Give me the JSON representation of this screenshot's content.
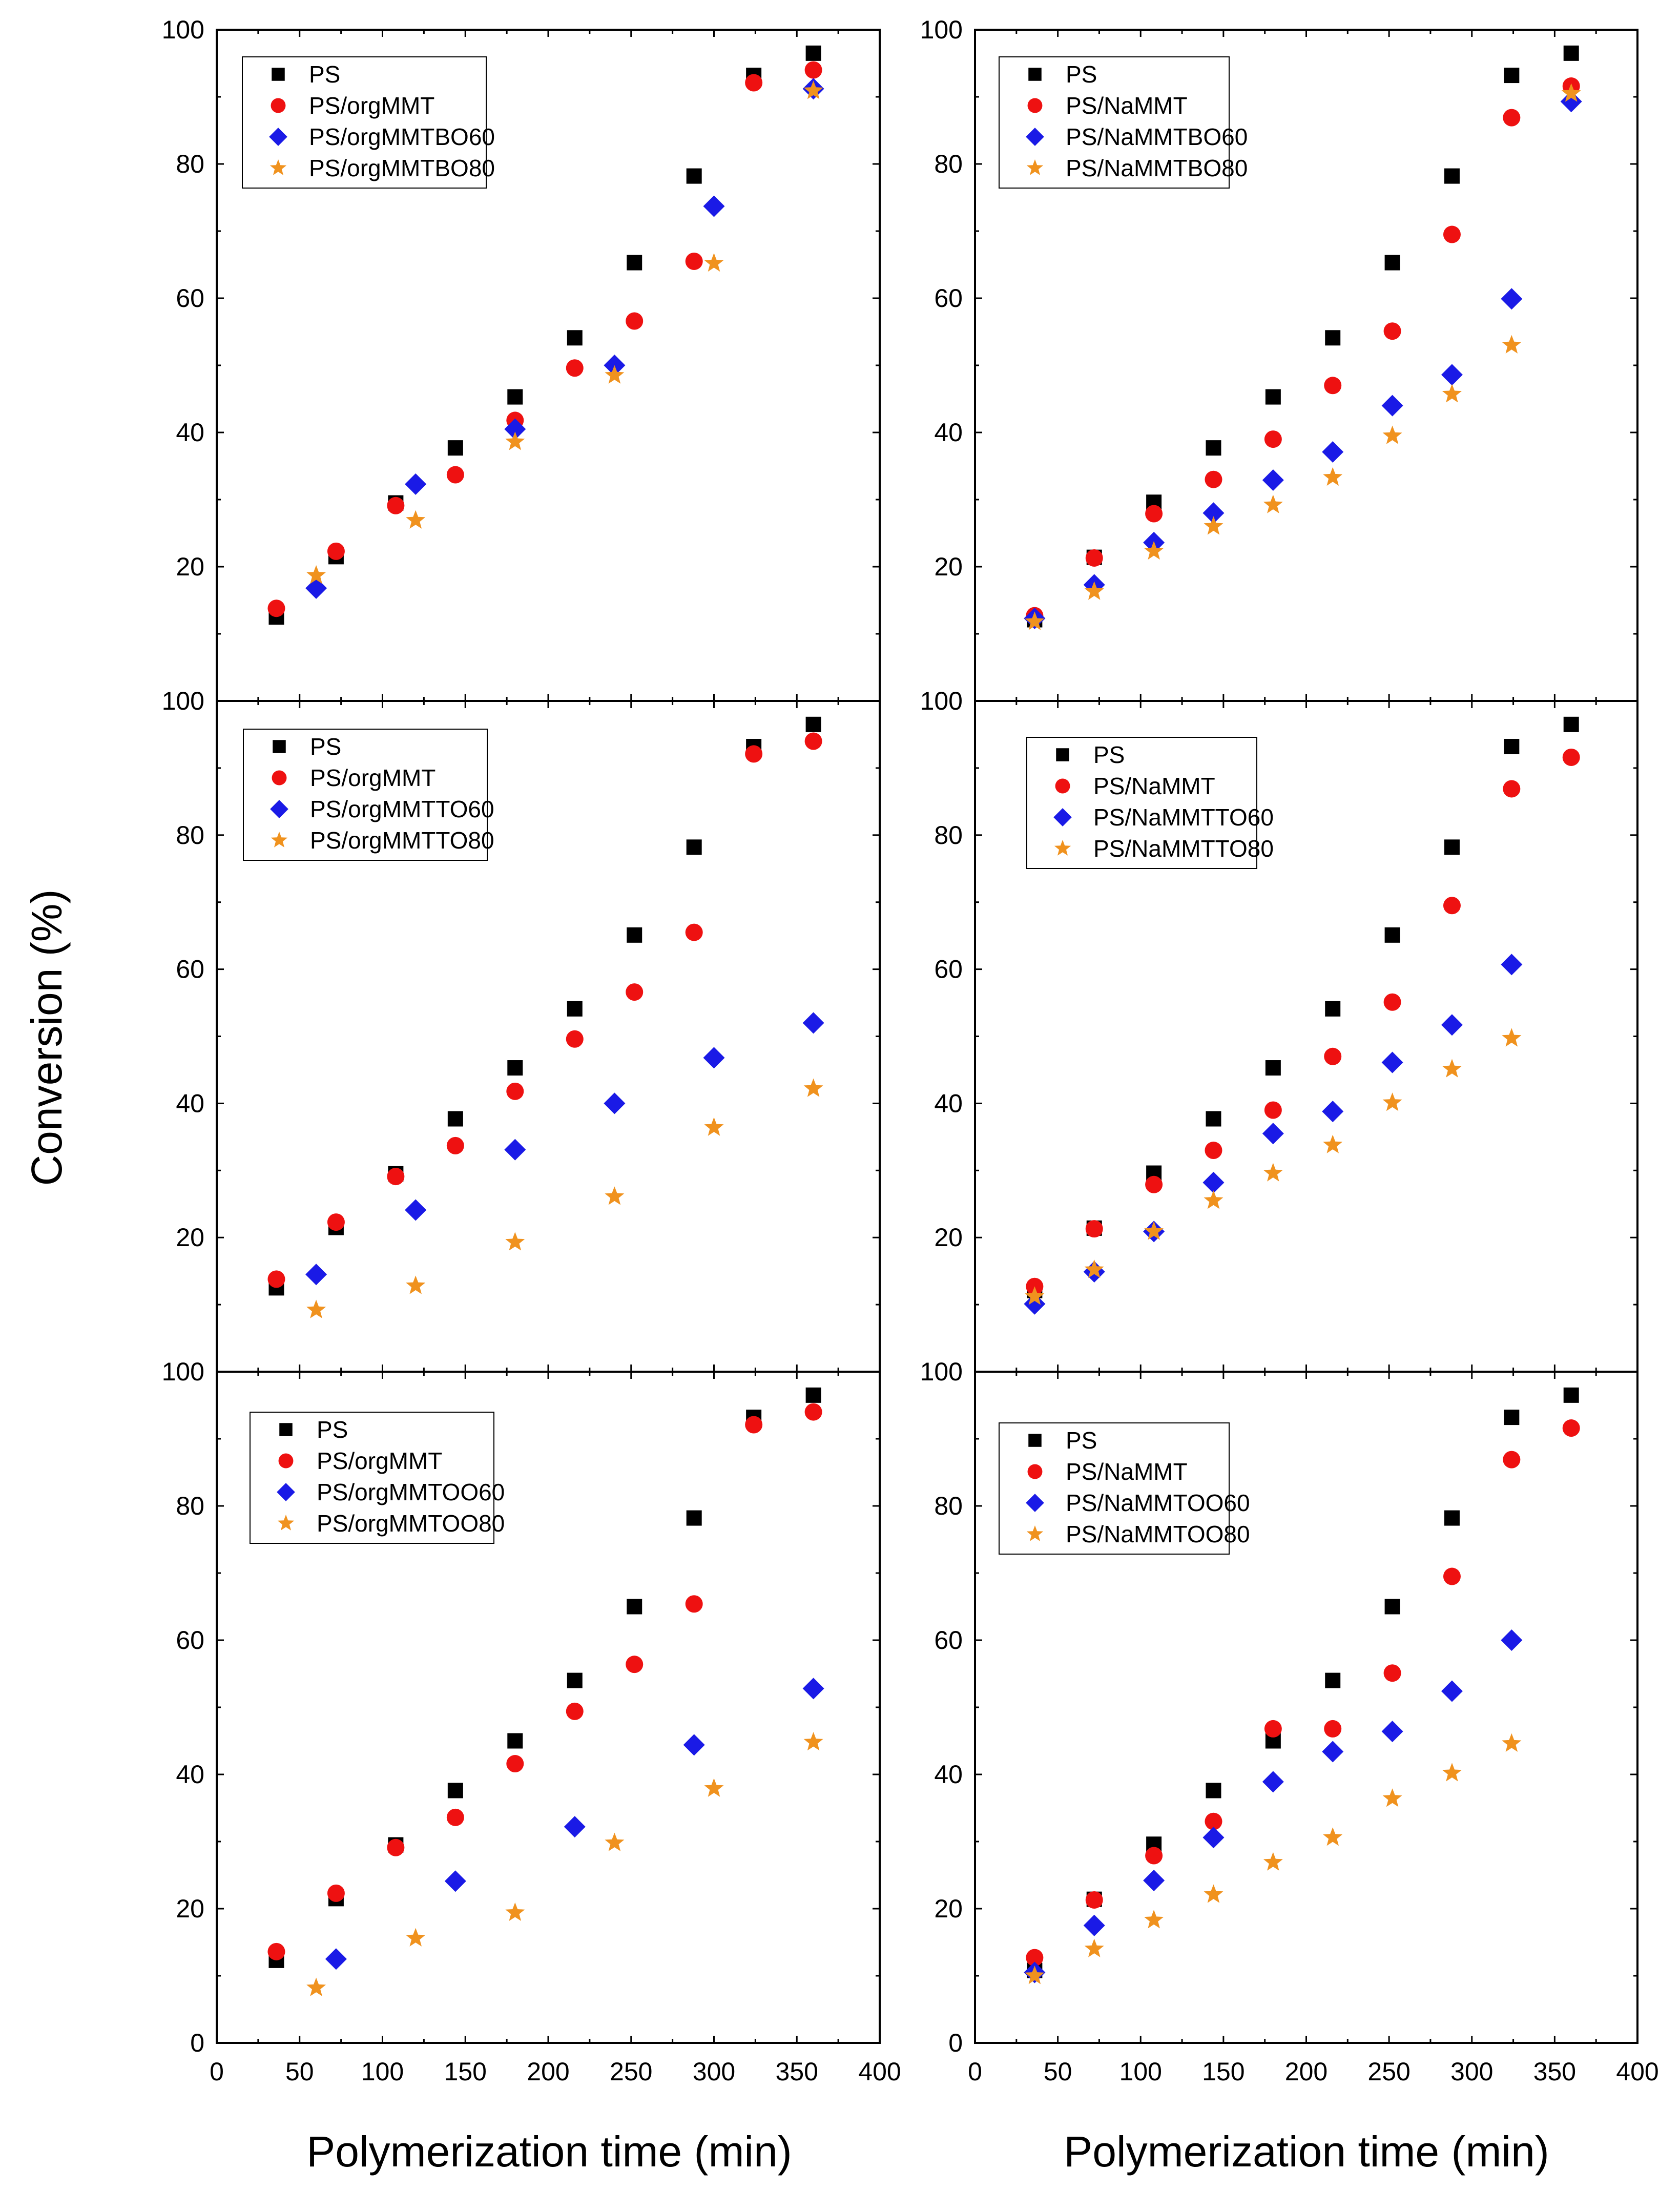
{
  "figure": {
    "ylabel": "Conversion (%)",
    "xlabel_left": "Polymerization time (min)",
    "xlabel_right": "Polymerization time (min)"
  },
  "colors": {
    "PS": "#000000",
    "clay": "#ee1111",
    "sixty": "#1a1ae6",
    "eighty": "#f0921e"
  },
  "chart_data": [
    {
      "type": "scatter",
      "panel": "top-left",
      "xlim": [
        0,
        400
      ],
      "ylim": [
        0,
        100
      ],
      "x_ticks": [
        "0",
        "50",
        "100",
        "150",
        "200",
        "250",
        "300",
        "350",
        "400"
      ],
      "y_ticks": [
        "100",
        "80",
        "60",
        "40",
        "20"
      ],
      "legend_position": "top-left",
      "series": [
        {
          "name": "PS",
          "marker": "square",
          "color": "#000000",
          "x": [
            36,
            72,
            108,
            144,
            180,
            216,
            252,
            288,
            324,
            360
          ],
          "y": [
            12.5,
            21.5,
            29.5,
            37.7,
            45.3,
            54.1,
            65.3,
            78.2,
            93.2,
            96.5
          ]
        },
        {
          "name": "PS/orgMMT",
          "marker": "circle",
          "color": "#ee1111",
          "x": [
            36,
            72,
            108,
            144,
            180,
            216,
            252,
            288,
            324,
            360
          ],
          "y": [
            13.8,
            22.3,
            29.1,
            33.7,
            41.8,
            49.6,
            56.6,
            65.5,
            92.1,
            94.0
          ]
        },
        {
          "name": "PS/orgMMTBO60",
          "marker": "diamond",
          "color": "#1a1ae6",
          "x": [
            60,
            120,
            180,
            240,
            300,
            360
          ],
          "y": [
            16.8,
            32.3,
            40.5,
            50.0,
            73.7,
            91.2
          ]
        },
        {
          "name": "PS/orgMMTBO80",
          "marker": "star",
          "color": "#f0921e",
          "x": [
            60,
            120,
            180,
            240,
            300,
            360
          ],
          "y": [
            18.7,
            26.9,
            38.6,
            48.5,
            65.2,
            90.9
          ]
        }
      ]
    },
    {
      "type": "scatter",
      "panel": "top-right",
      "xlim": [
        0,
        400
      ],
      "ylim": [
        0,
        100
      ],
      "x_ticks": [
        "0",
        "50",
        "100",
        "150",
        "200",
        "250",
        "300",
        "350",
        "400"
      ],
      "y_ticks": [
        "100",
        "80",
        "60",
        "40",
        "20"
      ],
      "legend_position": "top-left",
      "series": [
        {
          "name": "PS",
          "marker": "square",
          "color": "#000000",
          "x": [
            36,
            72,
            108,
            144,
            180,
            216,
            252,
            288,
            324,
            360
          ],
          "y": [
            12.1,
            21.4,
            29.6,
            37.7,
            45.3,
            54.1,
            65.3,
            78.2,
            93.2,
            96.5
          ]
        },
        {
          "name": "PS/NaMMT",
          "marker": "circle",
          "color": "#ee1111",
          "x": [
            36,
            72,
            108,
            144,
            180,
            216,
            252,
            288,
            324,
            360
          ],
          "y": [
            12.7,
            21.3,
            27.9,
            33.0,
            39.0,
            47.0,
            55.1,
            69.5,
            86.9,
            91.6
          ]
        },
        {
          "name": "PS/NaMMTBO60",
          "marker": "diamond",
          "color": "#1a1ae6",
          "x": [
            36,
            72,
            108,
            144,
            180,
            216,
            252,
            288,
            324,
            360
          ],
          "y": [
            12.3,
            17.3,
            23.6,
            28.0,
            32.9,
            37.1,
            44.0,
            48.6,
            59.9,
            89.3
          ]
        },
        {
          "name": "PS/NaMMTBO80",
          "marker": "star",
          "color": "#f0921e",
          "x": [
            36,
            72,
            108,
            144,
            180,
            216,
            252,
            288,
            324,
            360
          ],
          "y": [
            11.8,
            16.3,
            22.3,
            26.0,
            29.2,
            33.3,
            39.5,
            45.7,
            53.0,
            90.5
          ]
        }
      ]
    },
    {
      "type": "scatter",
      "panel": "middle-left",
      "xlim": [
        0,
        400
      ],
      "ylim": [
        0,
        100
      ],
      "x_ticks": [
        "0",
        "50",
        "100",
        "150",
        "200",
        "250",
        "300",
        "350",
        "400"
      ],
      "y_ticks": [
        "100",
        "80",
        "60",
        "40",
        "20"
      ],
      "legend_position": "top-left",
      "series": [
        {
          "name": "PS",
          "marker": "square",
          "color": "#000000",
          "x": [
            36,
            72,
            108,
            144,
            180,
            216,
            252,
            288,
            324,
            360
          ],
          "y": [
            12.5,
            21.5,
            29.5,
            37.7,
            45.3,
            54.1,
            65.1,
            78.2,
            93.2,
            96.5
          ]
        },
        {
          "name": "PS/orgMMT",
          "marker": "circle",
          "color": "#ee1111",
          "x": [
            36,
            72,
            108,
            144,
            180,
            216,
            252,
            288,
            324,
            360
          ],
          "y": [
            13.8,
            22.3,
            29.1,
            33.7,
            41.8,
            49.6,
            56.6,
            65.5,
            92.1,
            94.0
          ]
        },
        {
          "name": "PS/orgMMTTO60",
          "marker": "diamond",
          "color": "#1a1ae6",
          "x": [
            60,
            120,
            180,
            240,
            300,
            360
          ],
          "y": [
            14.5,
            24.1,
            33.1,
            40.0,
            46.8,
            52.0
          ]
        },
        {
          "name": "PS/orgMMTTO80",
          "marker": "star",
          "color": "#f0921e",
          "x": [
            60,
            120,
            180,
            240,
            300,
            360
          ],
          "y": [
            9.2,
            12.8,
            19.3,
            26.1,
            36.4,
            42.2
          ]
        }
      ]
    },
    {
      "type": "scatter",
      "panel": "middle-right",
      "xlim": [
        0,
        400
      ],
      "ylim": [
        0,
        100
      ],
      "x_ticks": [
        "0",
        "50",
        "100",
        "150",
        "200",
        "250",
        "300",
        "350",
        "400"
      ],
      "y_ticks": [
        "100",
        "80",
        "60",
        "40",
        "20"
      ],
      "legend_position": "top-left",
      "series": [
        {
          "name": "PS",
          "marker": "square",
          "color": "#000000",
          "x": [
            36,
            72,
            108,
            144,
            180,
            216,
            252,
            288,
            324,
            360
          ],
          "y": [
            12.1,
            21.4,
            29.6,
            37.7,
            45.3,
            54.1,
            65.1,
            78.2,
            93.2,
            96.5
          ]
        },
        {
          "name": "PS/NaMMT",
          "marker": "circle",
          "color": "#ee1111",
          "x": [
            36,
            72,
            108,
            144,
            180,
            216,
            252,
            288,
            324,
            360
          ],
          "y": [
            12.7,
            21.3,
            27.9,
            33.0,
            39.0,
            47.0,
            55.1,
            69.5,
            86.9,
            91.6
          ]
        },
        {
          "name": "PS/NaMMTTO60",
          "marker": "diamond",
          "color": "#1a1ae6",
          "x": [
            36,
            72,
            108,
            144,
            180,
            216,
            252,
            288,
            324
          ],
          "y": [
            10.1,
            14.9,
            20.9,
            28.2,
            35.5,
            38.8,
            46.1,
            51.7,
            60.7
          ]
        },
        {
          "name": "PS/NaMMTTO80",
          "marker": "star",
          "color": "#f0921e",
          "x": [
            36,
            72,
            108,
            144,
            180,
            216,
            252,
            288,
            324
          ],
          "y": [
            11.2,
            15.2,
            20.9,
            25.5,
            29.6,
            33.8,
            40.1,
            45.1,
            49.7
          ]
        }
      ]
    },
    {
      "type": "scatter",
      "panel": "bottom-left",
      "xlim": [
        0,
        400
      ],
      "ylim": [
        0,
        100
      ],
      "x_ticks": [
        "0",
        "50",
        "100",
        "150",
        "200",
        "250",
        "300",
        "350",
        "400"
      ],
      "y_ticks": [
        "100",
        "80",
        "60",
        "40",
        "20",
        "0"
      ],
      "legend_position": "top-left",
      "series": [
        {
          "name": "PS",
          "marker": "square",
          "color": "#000000",
          "x": [
            36,
            72,
            108,
            144,
            180,
            216,
            252,
            288,
            324,
            360
          ],
          "y": [
            12.3,
            21.5,
            29.5,
            37.6,
            45.0,
            54.0,
            65.0,
            78.2,
            93.2,
            96.5
          ]
        },
        {
          "name": "PS/orgMMT",
          "marker": "circle",
          "color": "#ee1111",
          "x": [
            36,
            72,
            108,
            144,
            180,
            216,
            252,
            288,
            324,
            360
          ],
          "y": [
            13.6,
            22.3,
            29.1,
            33.6,
            41.6,
            49.4,
            56.4,
            65.4,
            92.1,
            94.0
          ]
        },
        {
          "name": "PS/orgMMTOO60",
          "marker": "diamond",
          "color": "#1a1ae6",
          "x": [
            72,
            144,
            216,
            288,
            360
          ],
          "y": [
            12.5,
            24.1,
            32.2,
            44.4,
            52.8
          ]
        },
        {
          "name": "PS/orgMMTOO80",
          "marker": "star",
          "color": "#f0921e",
          "x": [
            60,
            120,
            180,
            240,
            300,
            360
          ],
          "y": [
            8.2,
            15.6,
            19.4,
            29.8,
            37.9,
            44.8
          ]
        }
      ]
    },
    {
      "type": "scatter",
      "panel": "bottom-right",
      "xlim": [
        0,
        400
      ],
      "ylim": [
        0,
        100
      ],
      "x_ticks": [
        "0",
        "50",
        "100",
        "150",
        "200",
        "250",
        "300",
        "350",
        "400"
      ],
      "y_ticks": [
        "100",
        "80",
        "60",
        "40",
        "20",
        "0"
      ],
      "legend_position": "top-left",
      "series": [
        {
          "name": "PS",
          "marker": "square",
          "color": "#000000",
          "x": [
            36,
            72,
            108,
            144,
            180,
            216,
            252,
            288,
            324,
            360
          ],
          "y": [
            10.8,
            21.4,
            29.6,
            37.6,
            45.0,
            54.0,
            65.0,
            78.2,
            93.2,
            96.5
          ]
        },
        {
          "name": "PS/NaMMT",
          "marker": "circle",
          "color": "#ee1111",
          "x": [
            36,
            72,
            108,
            144,
            180,
            216,
            252,
            288,
            324,
            360
          ],
          "y": [
            12.7,
            21.3,
            27.9,
            33.0,
            46.8,
            46.8,
            55.1,
            69.5,
            86.9,
            91.6
          ]
        },
        {
          "name": "PS/NaMMTOO60",
          "marker": "diamond",
          "color": "#1a1ae6",
          "x": [
            36,
            72,
            108,
            144,
            180,
            216,
            252,
            288,
            324
          ],
          "y": [
            10.5,
            17.5,
            24.2,
            30.6,
            38.9,
            43.4,
            46.4,
            52.4,
            60.0
          ]
        },
        {
          "name": "PS/NaMMTOO80",
          "marker": "star",
          "color": "#f0921e",
          "x": [
            36,
            72,
            108,
            144,
            180,
            216,
            252,
            288,
            324
          ],
          "y": [
            10.0,
            14.0,
            18.3,
            22.1,
            26.9,
            30.6,
            36.4,
            40.2,
            44.6
          ]
        }
      ]
    }
  ]
}
